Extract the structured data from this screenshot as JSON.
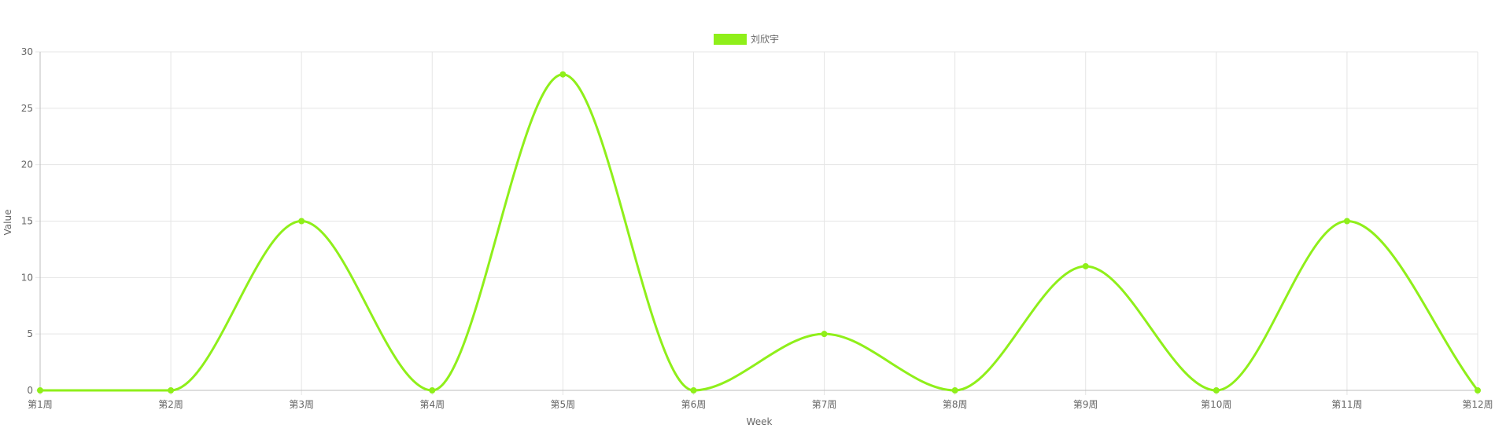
{
  "chart_data": {
    "type": "line",
    "title": "",
    "xlabel": "Week",
    "ylabel": "Value",
    "categories": [
      "第1周",
      "第2周",
      "第3周",
      "第4周",
      "第5周",
      "第6周",
      "第7周",
      "第8周",
      "第9周",
      "第10周",
      "第11周",
      "第12周"
    ],
    "series": [
      {
        "name": "刘欣宇",
        "color": "#8fef1a",
        "values": [
          0,
          0,
          15,
          0,
          28,
          0,
          5,
          0,
          11,
          0,
          15,
          0
        ]
      }
    ],
    "ylim": [
      0,
      30
    ],
    "yticks": [
      0,
      5,
      10,
      15,
      20,
      25,
      30
    ],
    "grid": true,
    "legend_position": "top-center",
    "curve": "smooth"
  }
}
